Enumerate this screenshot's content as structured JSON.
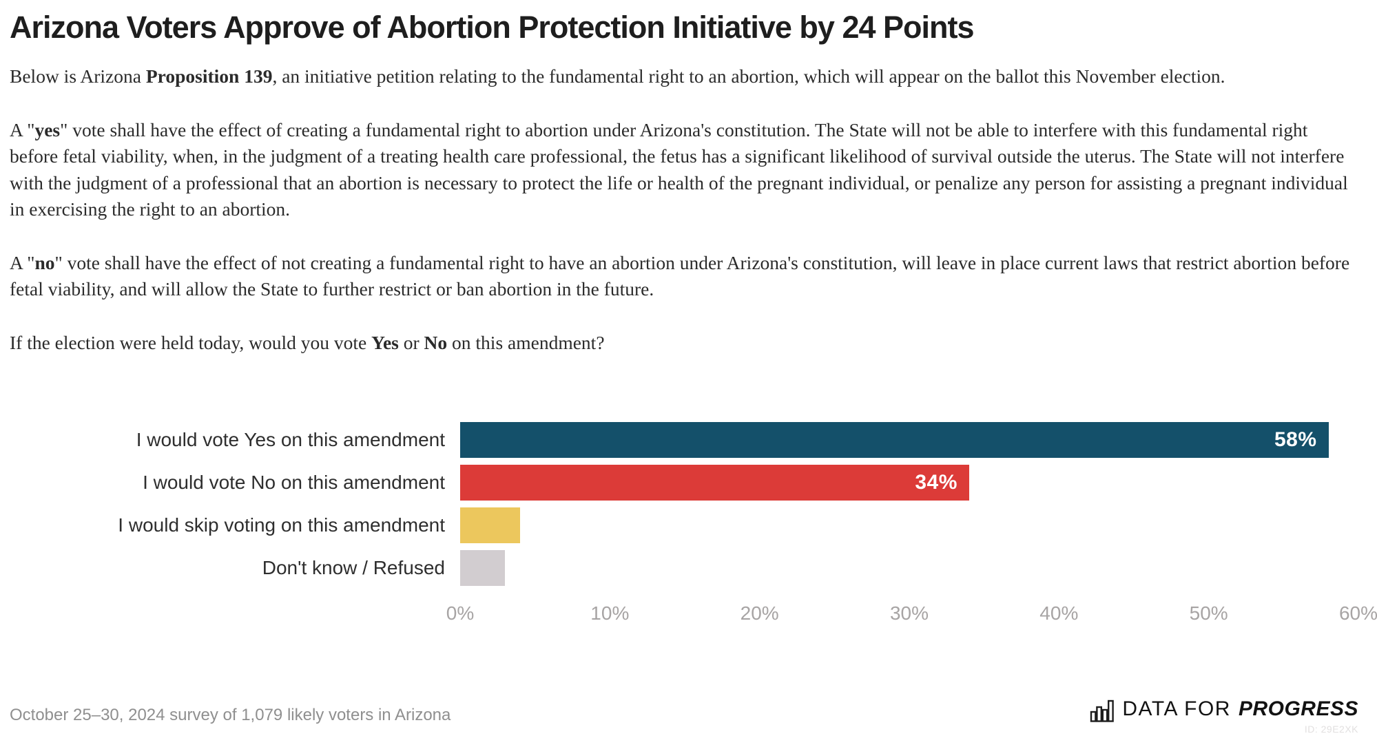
{
  "header": {
    "title": "Arizona Voters Approve of Abortion Protection Initiative by 24 Points"
  },
  "paragraphs": [
    {
      "segments": [
        {
          "t": "Below is Arizona ",
          "b": false
        },
        {
          "t": "Proposition 139",
          "b": true
        },
        {
          "t": ", an initiative petition relating to the fundamental right to an abortion, which will appear on the ballot this November election.",
          "b": false
        }
      ]
    },
    {
      "segments": [
        {
          "t": "A \"",
          "b": false
        },
        {
          "t": "yes",
          "b": true
        },
        {
          "t": "\" vote shall have the effect of creating a fundamental right to abortion under Arizona's constitution. The State will not be able to interfere with this fundamental right before fetal viability, when, in the judgment of a treating health care professional, the fetus has a significant likelihood of survival outside the uterus. The State will not interfere with the judgment of a professional that an abortion is necessary to protect the life or health of the pregnant individual, or penalize any person for assisting a pregnant individual in exercising the right to an abortion.",
          "b": false
        }
      ]
    },
    {
      "segments": [
        {
          "t": "A \"",
          "b": false
        },
        {
          "t": "no",
          "b": true
        },
        {
          "t": "\" vote shall have the effect of not creating a fundamental right to have an abortion under Arizona's constitution, will leave in place current laws that restrict abortion before fetal viability, and will allow the State to further restrict or ban abortion in the future.",
          "b": false
        }
      ]
    },
    {
      "segments": [
        {
          "t": "If the election were held today, would you vote ",
          "b": false
        },
        {
          "t": "Yes",
          "b": true
        },
        {
          "t": " or ",
          "b": false
        },
        {
          "t": "No",
          "b": true
        },
        {
          "t": " on this amendment?",
          "b": false
        }
      ]
    }
  ],
  "chart_data": {
    "type": "bar",
    "orientation": "horizontal",
    "title": "",
    "categories": [
      "I would vote Yes on this amendment",
      "I would vote No on this amendment",
      "I would skip voting on this amendment",
      "Don't know / Refused"
    ],
    "values": [
      58,
      34,
      4,
      3
    ],
    "value_labels": [
      "58%",
      "34%",
      "",
      ""
    ],
    "colors": [
      "#14506A",
      "#DC3B38",
      "#ECC75D",
      "#D2CDD0"
    ],
    "xlabel": "",
    "ylabel": "",
    "xlim": [
      0,
      60
    ],
    "x_ticks": [
      "0%",
      "10%",
      "20%",
      "30%",
      "40%",
      "50%",
      "60%"
    ],
    "grid": false,
    "legend": "none"
  },
  "footer": {
    "source": "October 25–30, 2024 survey of 1,079 likely voters in Arizona",
    "logo": {
      "icon": "bar-chart-icon",
      "text_light": "DATA FOR",
      "text_bold": "PROGRESS"
    },
    "id": "ID: 29E2XK"
  }
}
